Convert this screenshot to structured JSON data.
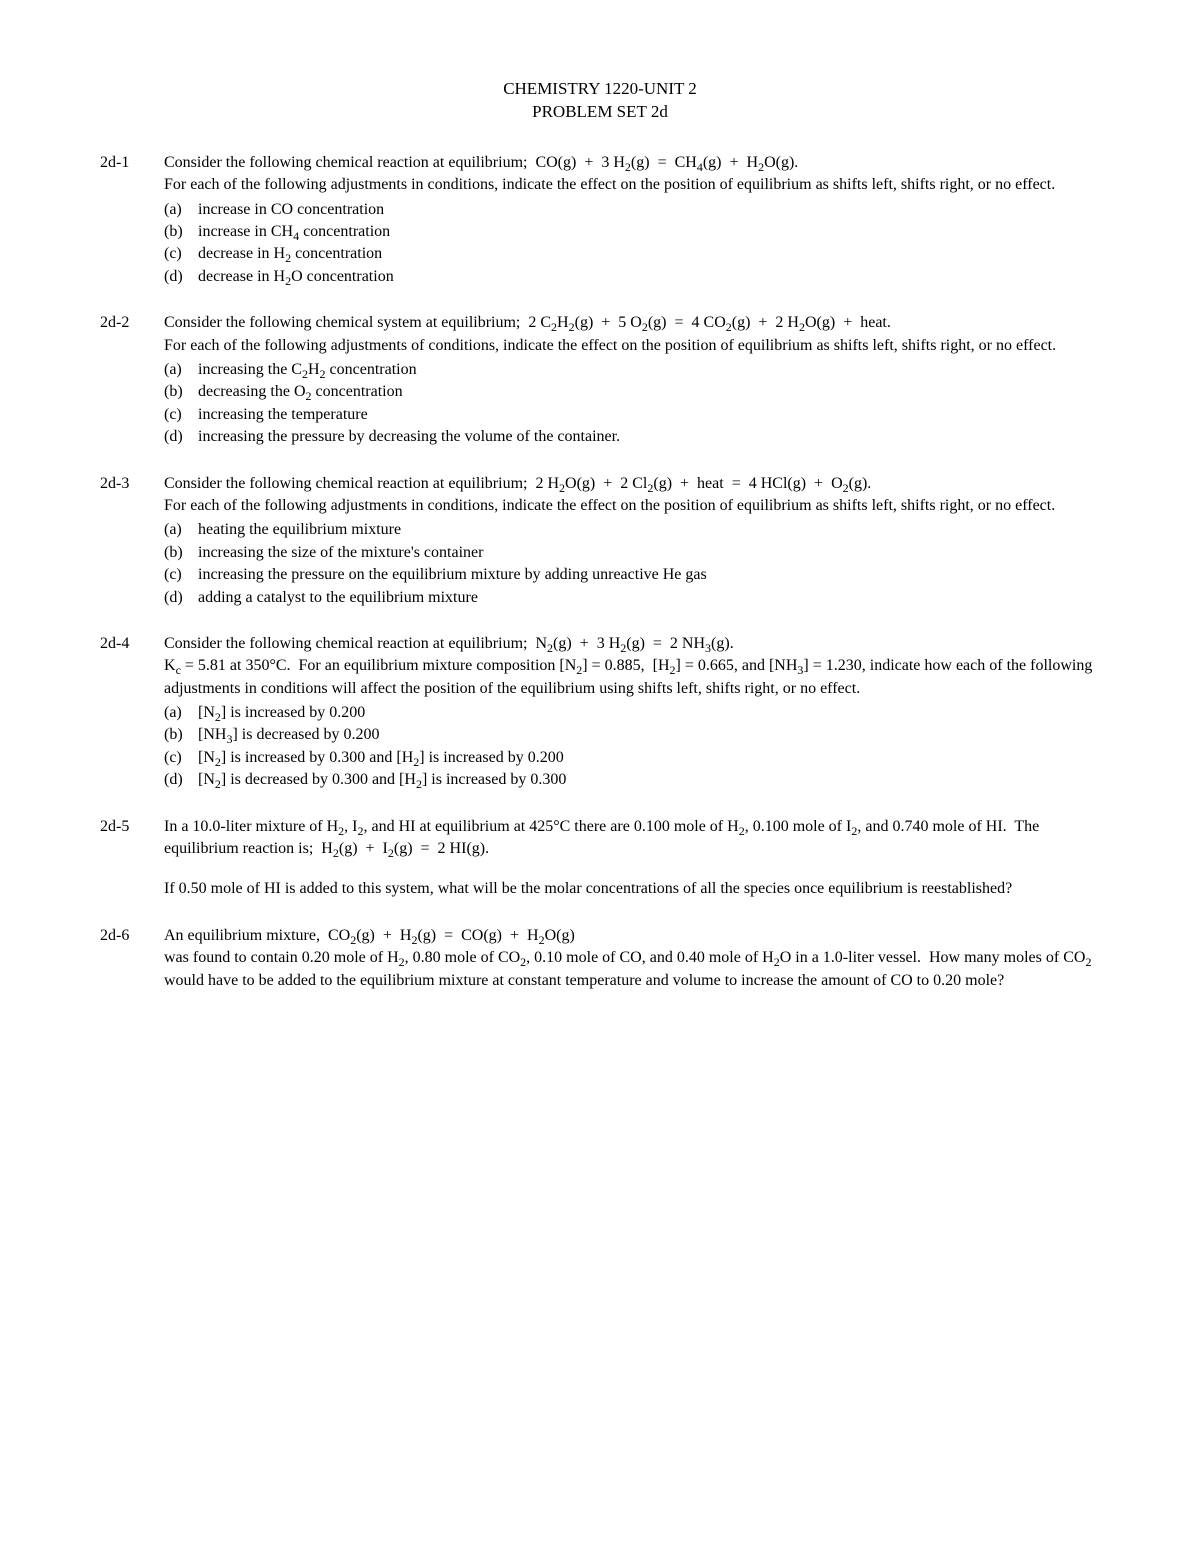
{
  "title": {
    "line1": "CHEMISTRY 1220-UNIT 2",
    "line2": "PROBLEM SET 2d"
  },
  "problems": [
    {
      "number": "2d-1",
      "intro_html": "Consider the following chemical reaction at equilibrium;&nbsp; CO(g)&nbsp; +&nbsp; 3 H<sub>2</sub>(g)&nbsp; =&nbsp; CH<sub>4</sub>(g)&nbsp; +&nbsp; H<sub>2</sub>O(g).<br>For each of the following adjustments in conditions, indicate the effect on the position of equilibrium as shifts left, shifts right, or no effect.",
      "subitems": [
        {
          "letter": "(a)",
          "text_html": "increase in CO concentration"
        },
        {
          "letter": "(b)",
          "text_html": "increase in CH<sub>4</sub> concentration"
        },
        {
          "letter": "(c)",
          "text_html": "decrease in H<sub>2</sub> concentration"
        },
        {
          "letter": "(d)",
          "text_html": "decrease in H<sub>2</sub>O concentration"
        }
      ]
    },
    {
      "number": "2d-2",
      "intro_html": "Consider the following chemical system at equilibrium;&nbsp; 2 C<sub>2</sub>H<sub>2</sub>(g)&nbsp; +&nbsp; 5 O<sub>2</sub>(g)&nbsp; =&nbsp; 4 CO<sub>2</sub>(g)&nbsp; +&nbsp; 2 H<sub>2</sub>O(g)&nbsp; +&nbsp; heat.<br>For each of the following adjustments of conditions, indicate the effect on the position of equilibrium as shifts left, shifts right, or no effect.",
      "subitems": [
        {
          "letter": "(a)",
          "text_html": "increasing the C<sub>2</sub>H<sub>2</sub> concentration"
        },
        {
          "letter": "(b)",
          "text_html": "decreasing the O<sub>2</sub> concentration"
        },
        {
          "letter": "(c)",
          "text_html": "increasing the temperature"
        },
        {
          "letter": "(d)",
          "text_html": "increasing the pressure by decreasing the volume of the container."
        }
      ]
    },
    {
      "number": "2d-3",
      "intro_html": "Consider the following chemical reaction at equilibrium;&nbsp; 2 H<sub>2</sub>O(g)&nbsp; +&nbsp; 2 Cl<sub>2</sub>(g)&nbsp; +&nbsp; heat&nbsp; =&nbsp; 4 HCl(g)&nbsp; +&nbsp; O<sub>2</sub>(g).<br>For each of the following adjustments in conditions, indicate the effect on the position of equilibrium as shifts left, shifts right, or no effect.",
      "subitems": [
        {
          "letter": "(a)",
          "text_html": "heating the equilibrium mixture"
        },
        {
          "letter": "(b)",
          "text_html": "increasing the size of the mixture's container"
        },
        {
          "letter": "(c)",
          "text_html": "increasing the pressure on the equilibrium mixture by adding unreactive He gas"
        },
        {
          "letter": "(d)",
          "text_html": "adding a catalyst to the equilibrium mixture"
        }
      ]
    },
    {
      "number": "2d-4",
      "intro_html": "Consider the following chemical reaction at equilibrium;&nbsp; N<sub>2</sub>(g)&nbsp; +&nbsp; 3 H<sub>2</sub>(g)&nbsp; =&nbsp; 2 NH<sub>3</sub>(g).<br>K<sub>c</sub> = 5.81 at 350°C.&nbsp; For an equilibrium mixture composition [N<sub>2</sub>] = 0.885,&nbsp; [H<sub>2</sub>] = 0.665, and [NH<sub>3</sub>] = 1.230, indicate how each of the following adjustments in conditions will affect the position of the equilibrium using shifts left, shifts right, or no effect.",
      "subitems": [
        {
          "letter": "(a)",
          "text_html": "[N<sub>2</sub>] is increased by 0.200"
        },
        {
          "letter": "(b)",
          "text_html": "[NH<sub>3</sub>] is decreased by 0.200"
        },
        {
          "letter": "(c)",
          "text_html": "[N<sub>2</sub>] is increased by 0.300 and [H<sub>2</sub>] is increased by 0.200"
        },
        {
          "letter": "(d)",
          "text_html": "[N<sub>2</sub>] is decreased by 0.300 and [H<sub>2</sub>] is increased by 0.300"
        }
      ]
    },
    {
      "number": "2d-5",
      "intro_html": "In a 10.0-liter mixture of H<sub>2</sub>, I<sub>2</sub>, and HI at equilibrium at 425°C there are 0.100 mole of H<sub>2</sub>, 0.100 mole of I<sub>2</sub>, and 0.740 mole of HI.&nbsp; The equilibrium reaction is;&nbsp; H<sub>2</sub>(g)&nbsp; +&nbsp; I<sub>2</sub>(g)&nbsp; =&nbsp; 2 HI(g).",
      "extra_html": "If 0.50 mole of HI is added to this system, what will be the molar concentrations of all the species once equilibrium is reestablished?"
    },
    {
      "number": "2d-6",
      "intro_html": "An equilibrium mixture,&nbsp; CO<sub>2</sub>(g)&nbsp; +&nbsp; H<sub>2</sub>(g)&nbsp; =&nbsp; CO(g)&nbsp; +&nbsp; H<sub>2</sub>O(g)<br>was found to contain 0.20 mole of H<sub>2</sub>, 0.80 mole of CO<sub>2</sub>, 0.10 mole of CO, and 0.40 mole of H<sub>2</sub>O in a 1.0-liter vessel.&nbsp; How many moles of CO<sub>2</sub> would have to be added to the equilibrium mixture at constant temperature and volume to increase the amount of CO to 0.20 mole?"
    }
  ]
}
